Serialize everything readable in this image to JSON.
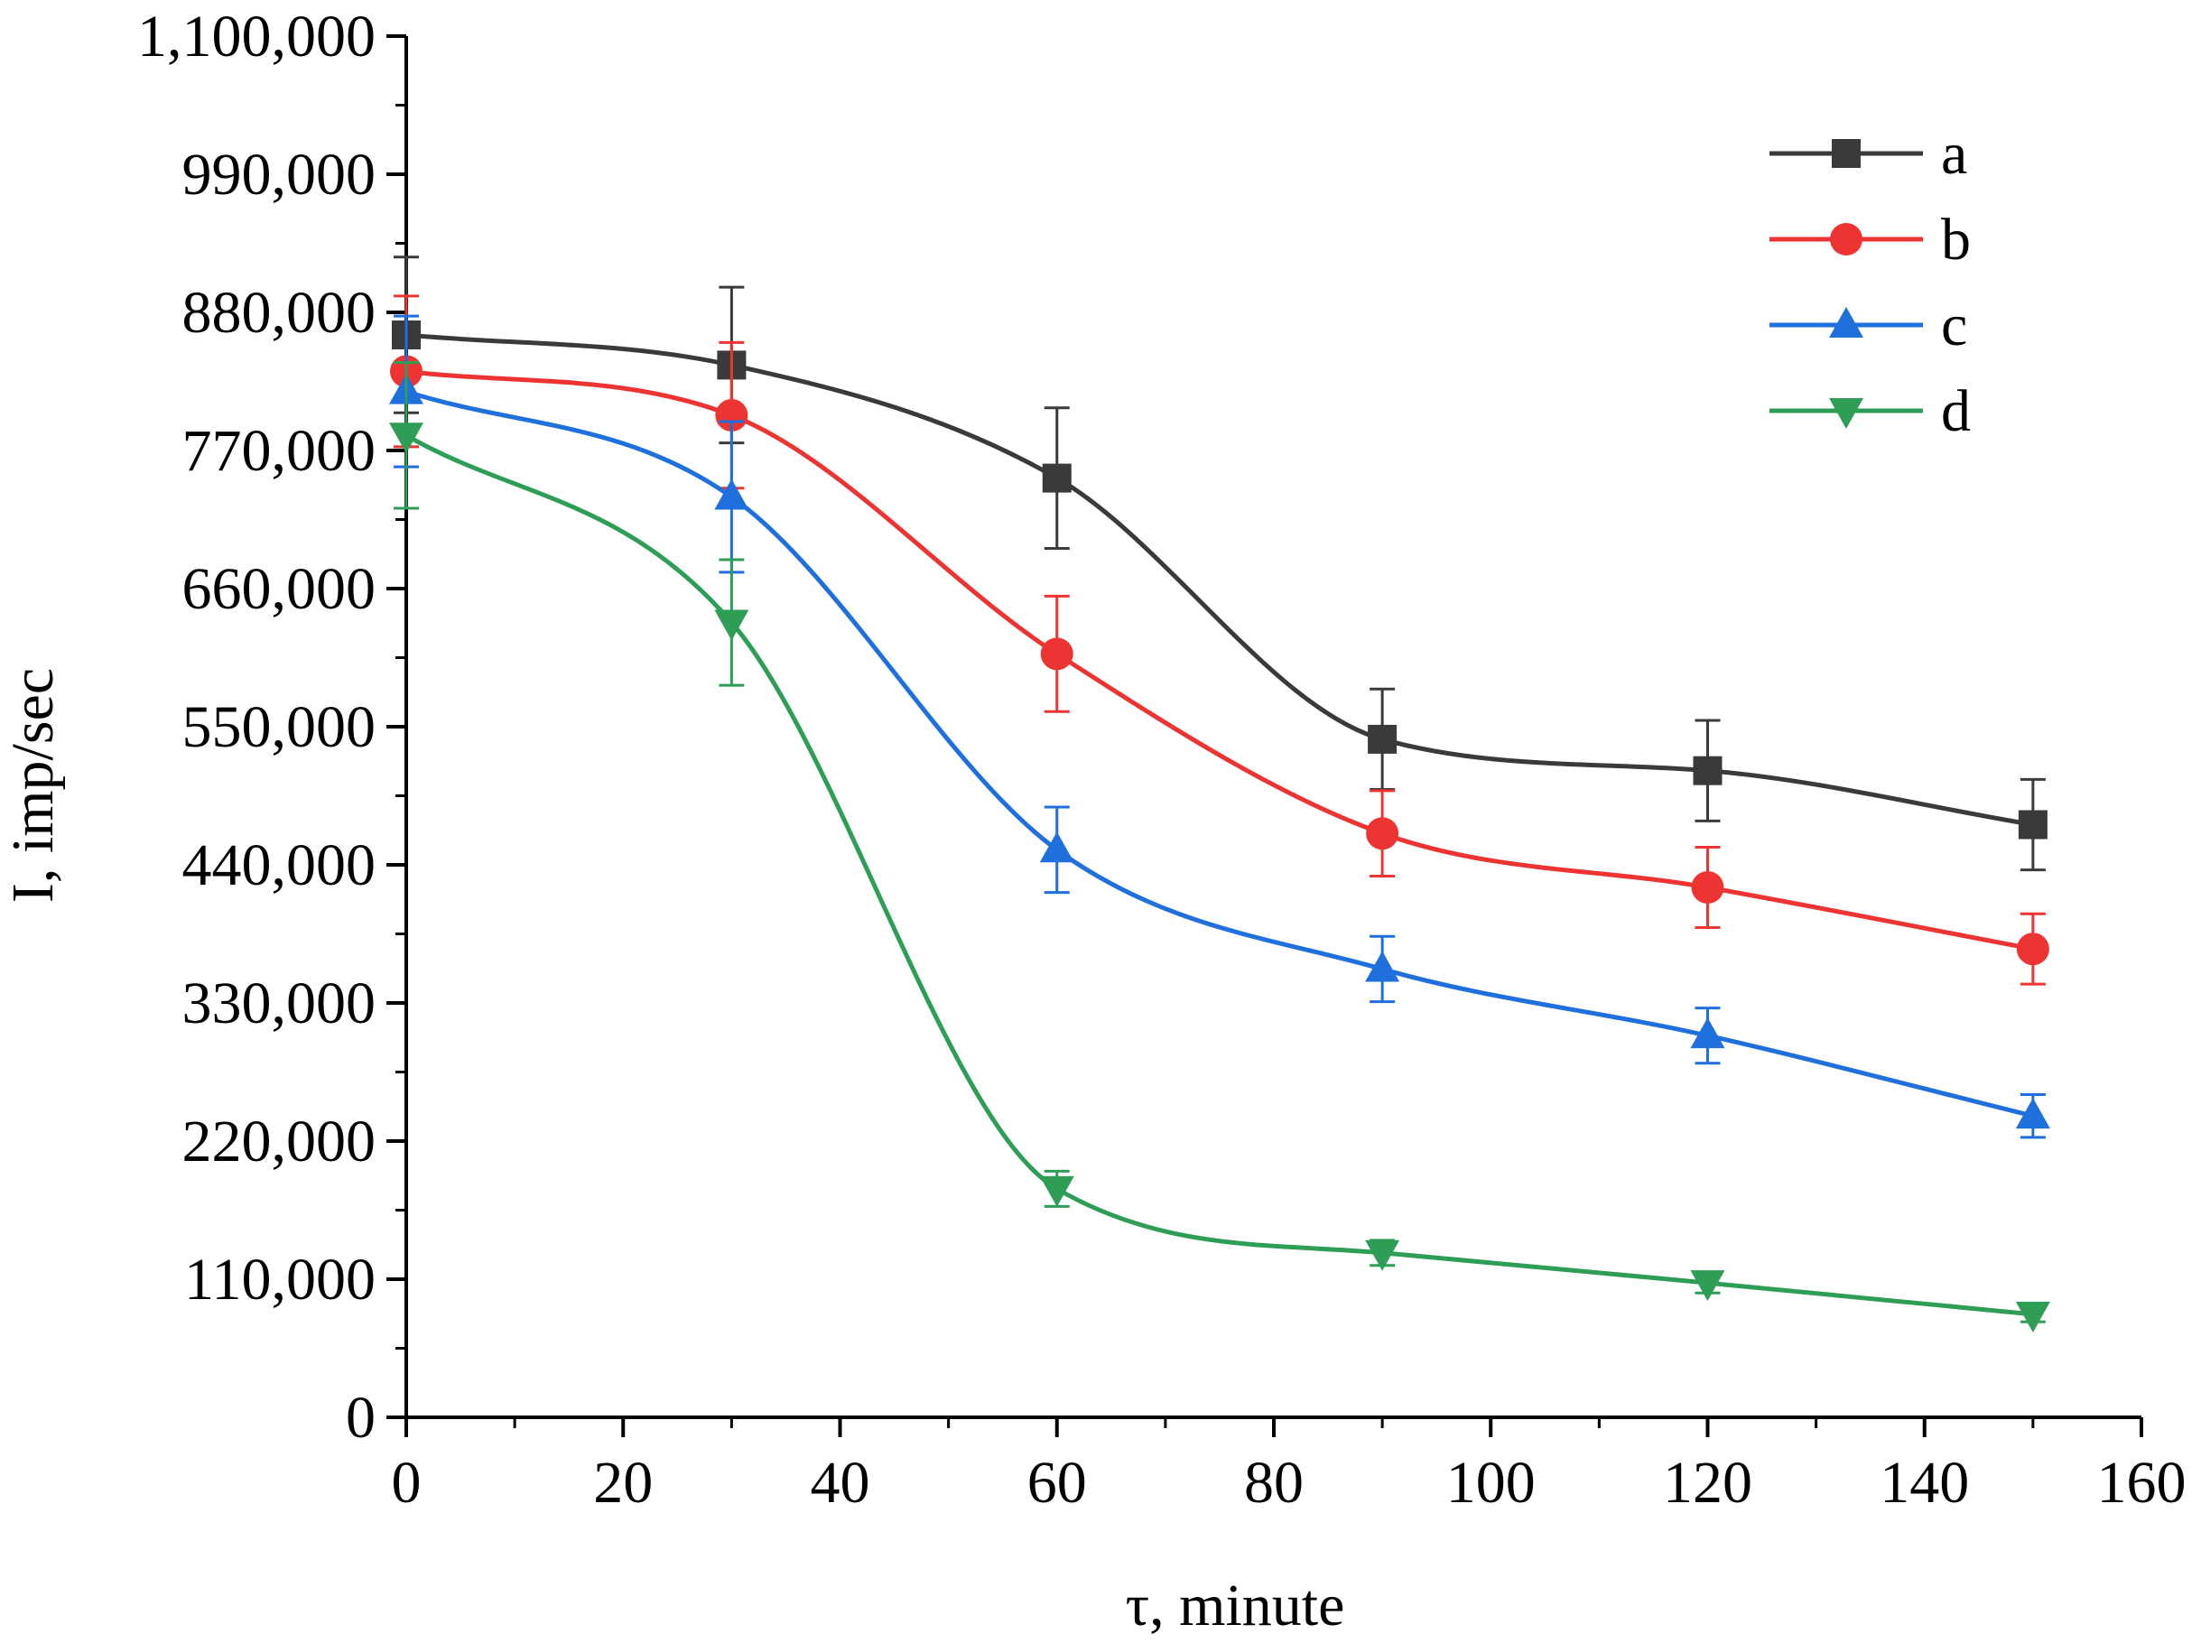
{
  "chart_data": {
    "type": "line",
    "title": "",
    "xlabel": "τ, minute",
    "ylabel": "I, imp/sec",
    "xlim": [
      0,
      160
    ],
    "ylim": [
      0,
      1100000
    ],
    "xticks": [
      0,
      20,
      40,
      60,
      80,
      100,
      120,
      140,
      160
    ],
    "yticks": [
      0,
      110000,
      220000,
      330000,
      440000,
      550000,
      660000,
      770000,
      880000,
      990000,
      1100000
    ],
    "xtick_labels": [
      "0",
      "20",
      "40",
      "60",
      "80",
      "100",
      "120",
      "140",
      "160"
    ],
    "ytick_labels": [
      "0",
      "110,000",
      "220,000",
      "330,000",
      "440,000",
      "550,000",
      "660,000",
      "770,000",
      "880,000",
      "990,000",
      "1,100,000"
    ],
    "grid": false,
    "legend_position": "top-right",
    "x": [
      0,
      30,
      60,
      90,
      120,
      150
    ],
    "series": [
      {
        "name": "a",
        "marker": "square",
        "color": "#3a3a3a",
        "values": [
          862000,
          838000,
          748000,
          540000,
          515000,
          472000
        ],
        "errors": [
          62000,
          62000,
          56000,
          40000,
          40000,
          36000
        ]
      },
      {
        "name": "b",
        "marker": "circle",
        "color": "#ee3333",
        "values": [
          833000,
          798000,
          608000,
          465000,
          422000,
          373000
        ],
        "errors": [
          60000,
          58000,
          46000,
          34000,
          32000,
          28000
        ]
      },
      {
        "name": "c",
        "marker": "triangle-up",
        "color": "#1f6fdc",
        "values": [
          817000,
          733000,
          452000,
          357000,
          304000,
          240000
        ],
        "errors": [
          60000,
          60000,
          34000,
          26000,
          22000,
          17000
        ]
      },
      {
        "name": "d",
        "marker": "triangle-down",
        "color": "#2e9e57",
        "values": [
          782000,
          633000,
          182000,
          131000,
          107000,
          82000
        ],
        "errors": [
          58000,
          50000,
          14000,
          10000,
          8000,
          6000
        ]
      }
    ]
  }
}
